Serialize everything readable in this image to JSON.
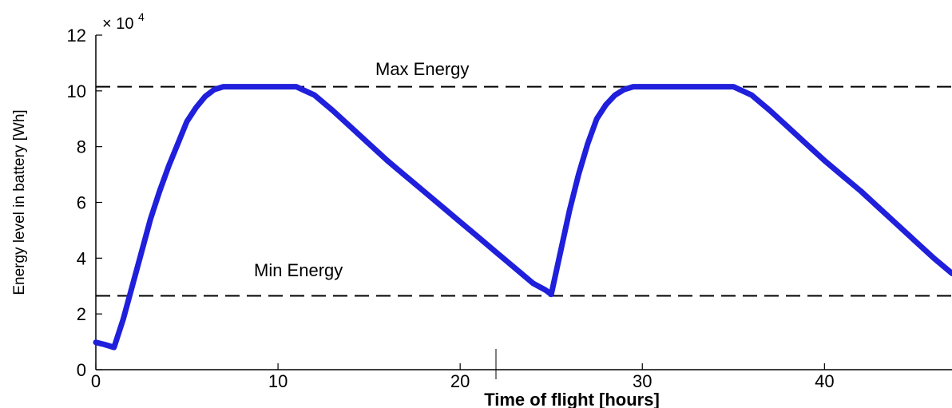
{
  "chart_data": {
    "type": "line",
    "xlabel": "Time of flight [hours]",
    "ylabel": "Energy level in battery [Wh]",
    "y_multiplier_base": "× 10",
    "y_multiplier_exp": "4",
    "xlim": [
      0,
      47
    ],
    "ylim": [
      0,
      120000
    ],
    "x_ticks": [
      0,
      10,
      20,
      30,
      40
    ],
    "x_tick_labels": [
      "0",
      "10",
      "20",
      "30",
      "40"
    ],
    "y_ticks": [
      0,
      20000,
      40000,
      60000,
      80000,
      100000,
      120000
    ],
    "y_tick_labels": [
      "0",
      "2",
      "4",
      "6",
      "8",
      "10",
      "12"
    ],
    "grid": false,
    "series": [
      {
        "color": "#1f1fdc",
        "x": [
          0,
          0.5,
          1,
          1.5,
          2,
          2.5,
          3,
          3.5,
          4,
          4.5,
          5,
          5.5,
          6,
          6.5,
          7,
          7.5,
          8,
          9,
          10,
          11,
          12,
          13,
          14,
          15,
          16,
          17,
          18,
          19,
          20,
          21,
          22,
          23,
          24,
          24.7,
          25,
          25.5,
          26,
          26.5,
          27,
          27.5,
          28,
          28.5,
          29,
          29.5,
          30,
          31,
          32,
          33,
          34,
          35,
          36,
          37,
          38,
          39,
          40,
          41,
          42,
          43,
          44,
          45,
          46,
          47
        ],
        "y": [
          9800,
          9000,
          8000,
          18000,
          30000,
          42000,
          54000,
          64000,
          73000,
          81000,
          89000,
          94000,
          98000,
          100500,
          101500,
          101500,
          101500,
          101500,
          101500,
          101500,
          98500,
          93000,
          87000,
          81000,
          75000,
          69500,
          64000,
          58500,
          53000,
          47500,
          42000,
          36500,
          31000,
          28500,
          27000,
          42000,
          57000,
          70000,
          81000,
          90000,
          95000,
          98500,
          100500,
          101500,
          101500,
          101500,
          101500,
          101500,
          101500,
          101500,
          98500,
          93000,
          87000,
          81000,
          75000,
          69500,
          64000,
          58000,
          52000,
          46000,
          40000,
          34500
        ]
      }
    ],
    "reference_lines": [
      {
        "label": "Max Energy",
        "y": 101500,
        "style": "dashed"
      },
      {
        "label": "Min Energy",
        "y": 26500,
        "style": "dashed"
      }
    ],
    "axis_colors": {
      "axis": "#000000",
      "reference": "#000000"
    }
  }
}
